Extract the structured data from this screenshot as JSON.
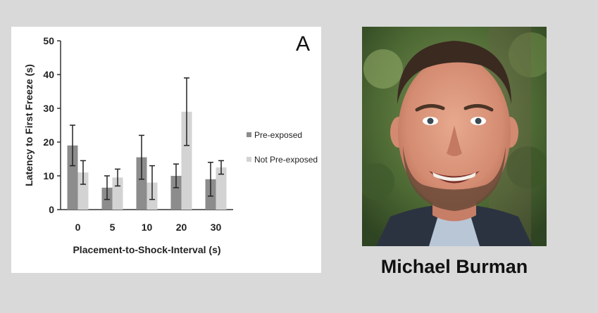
{
  "panel_letter": "A",
  "person_name": "Michael Burman",
  "colors": {
    "background": "#d9d9d9",
    "series_pre": "#8c8c8c",
    "series_not_pre": "#d3d3d3",
    "axis": "#333333"
  },
  "chart_data": {
    "type": "bar",
    "xlabel": "Placement-to-Shock-Interval (s)",
    "ylabel": "Latency to First Freeze (s)",
    "categories": [
      "0",
      "5",
      "10",
      "20",
      "30"
    ],
    "ylim": [
      0,
      50
    ],
    "yticks": [
      0,
      10,
      20,
      30,
      40,
      50
    ],
    "grid": false,
    "legend_position": "right",
    "series": [
      {
        "name": "Pre-exposed",
        "values": [
          19,
          6.5,
          15.5,
          10,
          9
        ],
        "error": [
          6,
          3.5,
          6.5,
          3.5,
          5
        ]
      },
      {
        "name": "Not Pre-exposed",
        "values": [
          11,
          9.5,
          8,
          29,
          12.5
        ],
        "error": [
          3.5,
          2.5,
          5,
          10,
          2
        ]
      }
    ]
  }
}
